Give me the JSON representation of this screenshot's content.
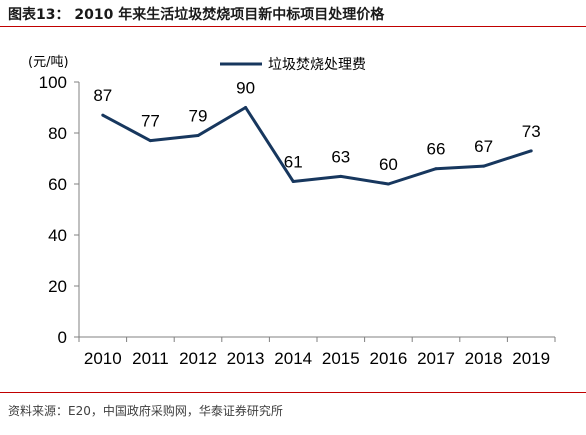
{
  "figure_title": "图表13： 2010 年来生活垃圾焚烧项目新中标项目处理价格",
  "source_note": "资料来源：E20，中国政府采购网，华泰证券研究所",
  "colors": {
    "rule": "#c00000",
    "line": "#17375e",
    "axis": "#808080"
  },
  "chart_data": {
    "type": "line",
    "unit": "(元/吨)",
    "categories": [
      "2010",
      "2011",
      "2012",
      "2013",
      "2014",
      "2015",
      "2016",
      "2017",
      "2018",
      "2019"
    ],
    "series": [
      {
        "name": "垃圾焚烧处理费",
        "values": [
          87,
          77,
          79,
          90,
          61,
          63,
          60,
          66,
          67,
          73
        ]
      }
    ],
    "yticks": [
      "0",
      "20",
      "40",
      "60",
      "80",
      "100"
    ],
    "ylim": [
      0,
      100
    ],
    "grid": false,
    "legend": "top-center"
  }
}
